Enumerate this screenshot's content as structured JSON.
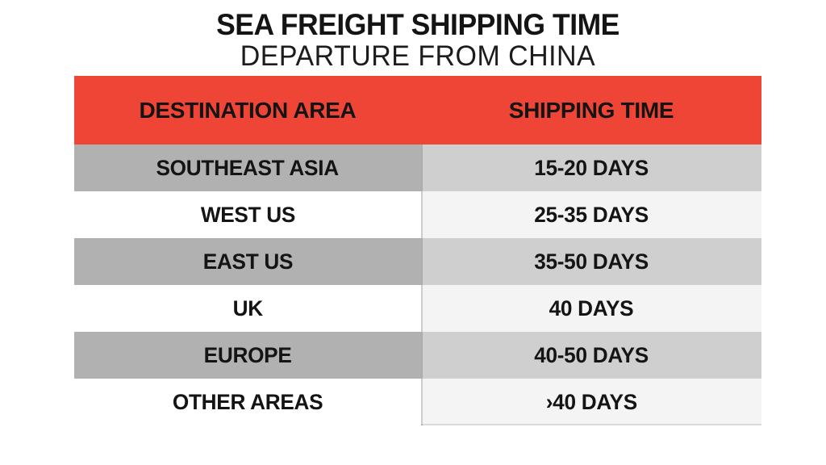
{
  "title": "SEA FREIGHT SHIPPING TIME",
  "subtitle": "DEPARTURE FROM CHINA",
  "table": {
    "headers": [
      "DESTINATION AREA",
      "SHIPPING TIME"
    ],
    "rows": [
      {
        "destination": "SOUTHEAST ASIA",
        "time": "15-20 DAYS"
      },
      {
        "destination": "WEST US",
        "time": "25-35 DAYS"
      },
      {
        "destination": "EAST US",
        "time": "35-50 DAYS"
      },
      {
        "destination": "UK",
        "time": "40 DAYS"
      },
      {
        "destination": "EUROPE",
        "time": "40-50 DAYS"
      },
      {
        "destination": "OTHER AREAS",
        "time": "›40 DAYS"
      }
    ]
  },
  "colors": {
    "header_bg": "#ef4536",
    "row_dark_left": "#b1b1b1",
    "row_dark_right": "#cfcfcf",
    "row_light_left": "#ffffff",
    "row_light_right": "#f4f4f4",
    "text": "#141414",
    "page_bg": "#ffffff"
  },
  "chart_data": {
    "type": "table",
    "title": "SEA FREIGHT SHIPPING TIME",
    "subtitle": "DEPARTURE FROM CHINA",
    "columns": [
      "DESTINATION AREA",
      "SHIPPING TIME"
    ],
    "rows": [
      [
        "SOUTHEAST ASIA",
        "15-20 DAYS"
      ],
      [
        "WEST US",
        "25-35 DAYS"
      ],
      [
        "EAST US",
        "35-50 DAYS"
      ],
      [
        "UK",
        "40 DAYS"
      ],
      [
        "EUROPE",
        "40-50 DAYS"
      ],
      [
        "OTHER AREAS",
        "›40 DAYS"
      ]
    ],
    "shipping_days_numeric": [
      {
        "destination": "SOUTHEAST ASIA",
        "min_days": 15,
        "max_days": 20
      },
      {
        "destination": "WEST US",
        "min_days": 25,
        "max_days": 35
      },
      {
        "destination": "EAST US",
        "min_days": 35,
        "max_days": 50
      },
      {
        "destination": "UK",
        "min_days": 40,
        "max_days": 40
      },
      {
        "destination": "EUROPE",
        "min_days": 40,
        "max_days": 50
      },
      {
        "destination": "OTHER AREAS",
        "min_days": 40,
        "max_days": null
      }
    ],
    "layout": {
      "header_fill": "#ef4536",
      "striped": true,
      "legend_position": "none"
    }
  }
}
